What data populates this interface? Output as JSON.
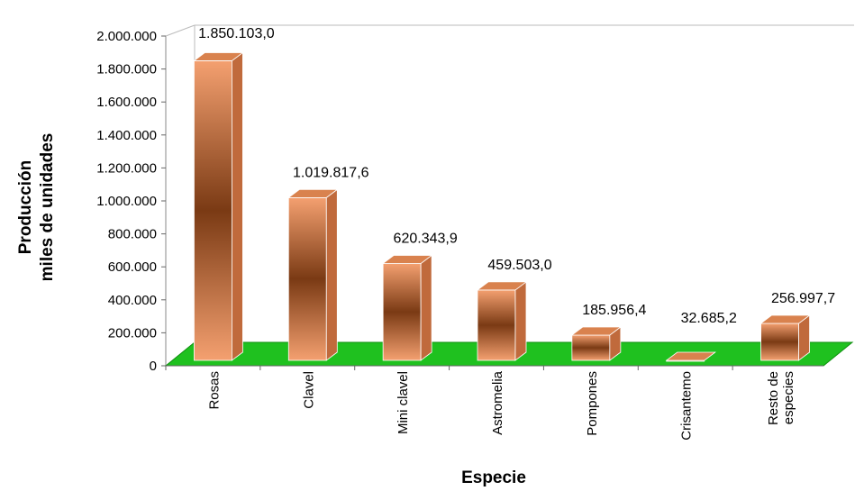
{
  "chart_data": {
    "type": "bar",
    "title": "",
    "xlabel": "Especie",
    "ylabel": [
      "Producción",
      "miles de unidades"
    ],
    "categories": [
      [
        "Rosas"
      ],
      [
        "Clavel"
      ],
      [
        "Mini clavel"
      ],
      [
        "Astromelia"
      ],
      [
        "Pompones"
      ],
      [
        "Crisantemo"
      ],
      [
        "Resto de",
        "especies"
      ]
    ],
    "values": [
      1850103.0,
      1019817.6,
      620343.9,
      459503.0,
      185956.4,
      32685.2,
      256997.7
    ],
    "data_labels": [
      "1.850.103,0",
      "1.019.817,6",
      "620.343,9",
      "459.503,0",
      "185.956,4",
      "32.685,2",
      "256.997,7"
    ],
    "ylim": [
      0,
      2000000
    ],
    "yticks": [
      "0",
      "200.000",
      "400.000",
      "600.000",
      "800.000",
      "1.000.000",
      "1.200.000",
      "1.400.000",
      "1.600.000",
      "1.800.000",
      "2.000.000"
    ],
    "grid": false,
    "style": "3d-bar",
    "colors": {
      "bar_light": "#f4a070",
      "bar_dark": "#7a3a14",
      "bar_side": "#c06a3c",
      "bar_top": "#d9824e",
      "floor": "#1fc11f",
      "floor_dark": "#0f8f0f"
    }
  }
}
